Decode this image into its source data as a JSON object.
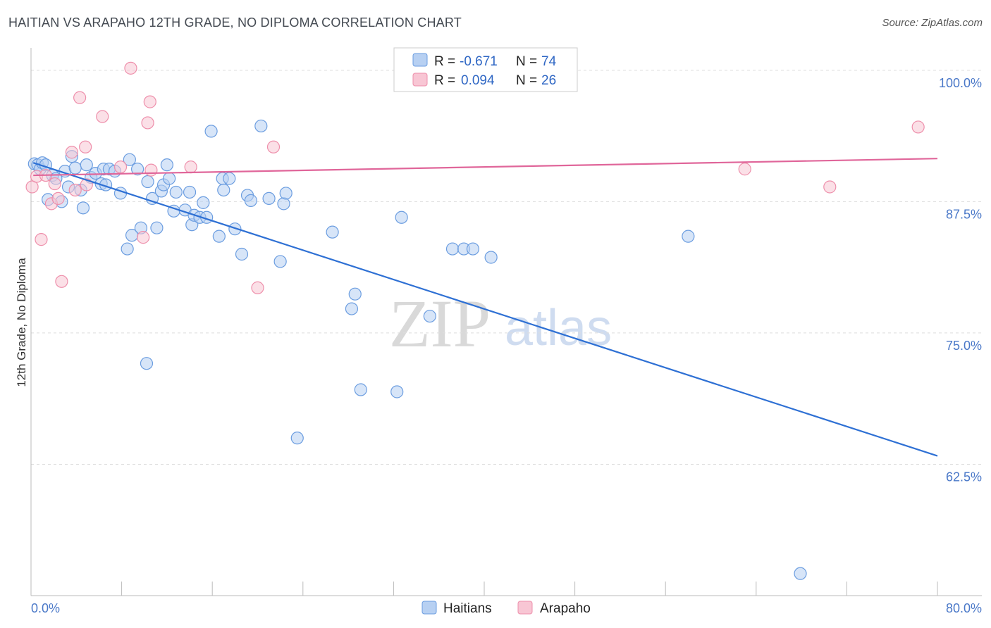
{
  "header": {
    "title": "HAITIAN VS ARAPAHO 12TH GRADE, NO DIPLOMA CORRELATION CHART",
    "source": "Source: ZipAtlas.com"
  },
  "watermark": {
    "zip": "ZIP",
    "atlas": "atlas"
  },
  "colors": {
    "haitians_fill": "#b7d0f2",
    "haitians_stroke": "#6b9de0",
    "haitians_line": "#2e70d4",
    "arapaho_fill": "#f8c6d4",
    "arapaho_stroke": "#ee8fab",
    "arapaho_line": "#e0669a",
    "axis_text": "#4a78c8",
    "grid": "#dddddd"
  },
  "legend": {
    "rows": [
      {
        "r_label": "R = ",
        "r_value": "-0.671",
        "n_label": "N = ",
        "n_value": "74"
      },
      {
        "r_label": "R = ",
        "r_value": "0.094",
        "n_label": "N = ",
        "n_value": "26"
      }
    ]
  },
  "chart_data": {
    "type": "scatter",
    "title": "HAITIAN VS ARAPAHO 12TH GRADE, NO DIPLOMA CORRELATION CHART",
    "xlabel": "",
    "ylabel": "12th Grade, No Diploma",
    "xlim": [
      0,
      80
    ],
    "ylim": [
      50,
      102
    ],
    "x_tick_labels": [
      "0.0%",
      "80.0%"
    ],
    "y_ticks": [
      {
        "value": 100,
        "label": "100.0%"
      },
      {
        "value": 87.5,
        "label": "87.5%"
      },
      {
        "value": 75,
        "label": "75.0%"
      },
      {
        "value": 62.5,
        "label": "62.5%"
      }
    ],
    "series": [
      {
        "name": "Haitians",
        "R": -0.671,
        "N": 74,
        "trend": {
          "x": [
            0.2,
            80
          ],
          "y": [
            91.2,
            63.3
          ]
        },
        "points": [
          [
            0.3,
            91.1
          ],
          [
            0.6,
            91.0
          ],
          [
            0.8,
            90.6
          ],
          [
            1.0,
            91.2
          ],
          [
            1.3,
            91.0
          ],
          [
            1.5,
            87.7
          ],
          [
            1.9,
            90.0
          ],
          [
            2.2,
            89.7
          ],
          [
            2.7,
            87.5
          ],
          [
            3.0,
            90.4
          ],
          [
            3.3,
            88.9
          ],
          [
            3.6,
            91.8
          ],
          [
            3.9,
            90.7
          ],
          [
            4.4,
            88.6
          ],
          [
            4.6,
            86.9
          ],
          [
            4.9,
            91.0
          ],
          [
            5.3,
            89.8
          ],
          [
            5.7,
            90.2
          ],
          [
            6.2,
            89.2
          ],
          [
            6.4,
            90.6
          ],
          [
            6.6,
            89.1
          ],
          [
            6.9,
            90.6
          ],
          [
            7.4,
            90.4
          ],
          [
            7.9,
            88.3
          ],
          [
            8.5,
            83.0
          ],
          [
            8.9,
            84.3
          ],
          [
            8.7,
            91.5
          ],
          [
            9.4,
            90.6
          ],
          [
            9.7,
            85.0
          ],
          [
            10.2,
            72.1
          ],
          [
            10.3,
            89.4
          ],
          [
            10.7,
            87.8
          ],
          [
            11.1,
            85.0
          ],
          [
            11.5,
            88.5
          ],
          [
            11.7,
            89.1
          ],
          [
            12.0,
            91.0
          ],
          [
            12.2,
            89.7
          ],
          [
            12.6,
            86.6
          ],
          [
            12.8,
            88.4
          ],
          [
            13.6,
            86.7
          ],
          [
            14.0,
            88.4
          ],
          [
            14.2,
            85.3
          ],
          [
            14.4,
            86.2
          ],
          [
            14.9,
            86.0
          ],
          [
            15.2,
            87.4
          ],
          [
            15.5,
            86.0
          ],
          [
            15.9,
            94.2
          ],
          [
            16.6,
            84.2
          ],
          [
            16.9,
            89.7
          ],
          [
            17.0,
            88.6
          ],
          [
            17.5,
            89.7
          ],
          [
            18.0,
            84.9
          ],
          [
            18.6,
            82.5
          ],
          [
            19.1,
            88.1
          ],
          [
            19.4,
            87.6
          ],
          [
            20.3,
            94.7
          ],
          [
            21.0,
            87.8
          ],
          [
            22.0,
            81.8
          ],
          [
            22.3,
            87.3
          ],
          [
            22.5,
            88.3
          ],
          [
            23.5,
            65.0
          ],
          [
            26.6,
            84.6
          ],
          [
            28.3,
            77.3
          ],
          [
            28.6,
            78.7
          ],
          [
            29.1,
            69.6
          ],
          [
            32.3,
            69.4
          ],
          [
            32.7,
            86.0
          ],
          [
            35.2,
            76.6
          ],
          [
            37.2,
            83.0
          ],
          [
            38.2,
            83.0
          ],
          [
            39.0,
            83.0
          ],
          [
            40.6,
            82.2
          ],
          [
            58.0,
            84.2
          ],
          [
            67.9,
            52.1
          ]
        ]
      },
      {
        "name": "Arapaho",
        "R": 0.094,
        "N": 26,
        "trend": {
          "x": [
            0.2,
            80
          ],
          "y": [
            90.0,
            91.6
          ]
        },
        "points": [
          [
            0.1,
            88.9
          ],
          [
            0.5,
            89.9
          ],
          [
            0.9,
            83.9
          ],
          [
            1.3,
            90.0
          ],
          [
            1.8,
            87.3
          ],
          [
            2.1,
            89.2
          ],
          [
            2.4,
            87.8
          ],
          [
            2.7,
            79.9
          ],
          [
            3.6,
            92.2
          ],
          [
            3.9,
            88.6
          ],
          [
            4.3,
            97.4
          ],
          [
            4.9,
            89.1
          ],
          [
            4.8,
            92.7
          ],
          [
            6.3,
            95.6
          ],
          [
            7.9,
            90.8
          ],
          [
            8.8,
            100.2
          ],
          [
            9.9,
            84.1
          ],
          [
            10.3,
            95.0
          ],
          [
            10.5,
            97.0
          ],
          [
            10.6,
            90.5
          ],
          [
            14.1,
            90.8
          ],
          [
            20.0,
            79.3
          ],
          [
            21.4,
            92.7
          ],
          [
            63.0,
            90.6
          ],
          [
            70.5,
            88.9
          ],
          [
            78.3,
            94.6
          ]
        ]
      }
    ]
  },
  "bottom_legend": {
    "items": [
      "Haitians",
      "Arapaho"
    ]
  }
}
